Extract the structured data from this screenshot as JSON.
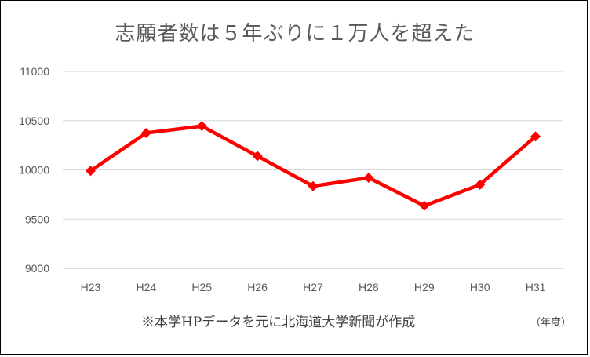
{
  "chart_data": {
    "type": "line",
    "title": "志願者数は５年ぶりに１万人を超えた",
    "categories": [
      "H23",
      "H24",
      "H25",
      "H26",
      "H27",
      "H28",
      "H29",
      "H30",
      "H31"
    ],
    "series": [
      {
        "values": [
          9990,
          10375,
          10445,
          10140,
          9835,
          9920,
          9635,
          9850,
          10340
        ],
        "color": "#ff0000"
      }
    ],
    "ylim": [
      9000,
      11000
    ],
    "yticks": [
      9000,
      9500,
      10000,
      10500,
      11000
    ],
    "grid": true,
    "source_note": "※本学HPデータを元に北海道大学新聞が作成",
    "x_unit": "（年度）"
  }
}
